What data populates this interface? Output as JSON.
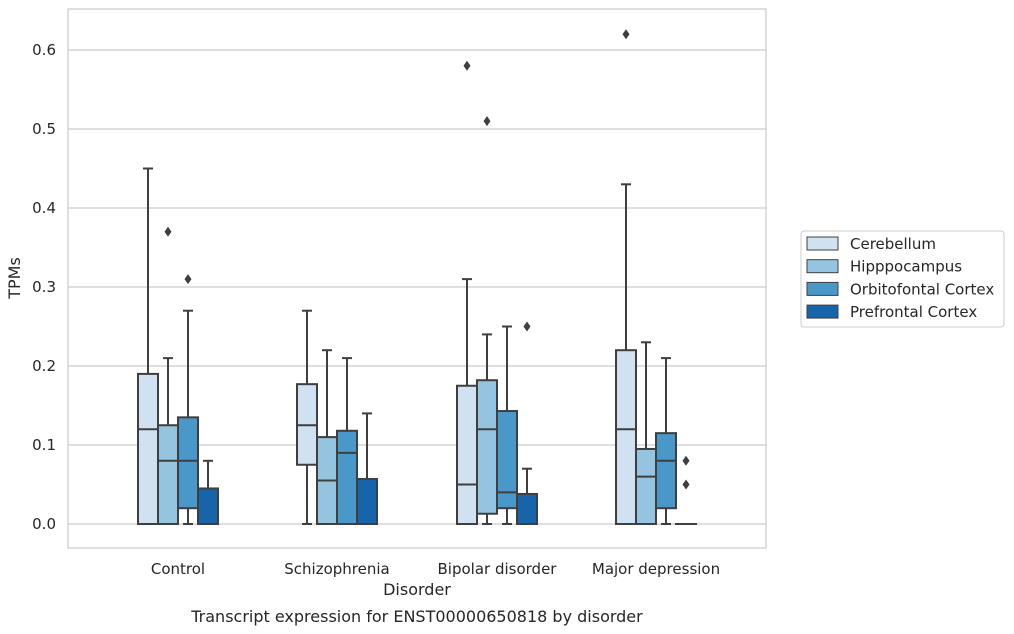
{
  "chart_data": {
    "type": "box",
    "caption": "Transcript expression for ENST00000650818 by disorder",
    "xlabel": "Disorder",
    "ylabel": "TPMs",
    "ylim": [
      -0.03,
      0.65
    ],
    "yticks": [
      0.0,
      0.1,
      0.2,
      0.3,
      0.4,
      0.5,
      0.6
    ],
    "ytick_labels": [
      "0.0",
      "0.1",
      "0.2",
      "0.3",
      "0.4",
      "0.5",
      "0.6"
    ],
    "grid": true,
    "legend_position": "right",
    "categories": [
      "Control",
      "Schizophrenia",
      "Bipolar disorder",
      "Major depression"
    ],
    "series": [
      {
        "name": "Cerebellum",
        "color": "#d0e1f2",
        "boxes": [
          {
            "whislo": 0.0,
            "q1": 0.0,
            "med": 0.12,
            "q3": 0.19,
            "whishi": 0.45,
            "fliers": []
          },
          {
            "whislo": 0.0,
            "q1": 0.075,
            "med": 0.125,
            "q3": 0.177,
            "whishi": 0.27,
            "fliers": []
          },
          {
            "whislo": 0.0,
            "q1": 0.0,
            "med": 0.05,
            "q3": 0.175,
            "whishi": 0.31,
            "fliers": [
              0.58
            ]
          },
          {
            "whislo": 0.0,
            "q1": 0.0,
            "med": 0.12,
            "q3": 0.22,
            "whishi": 0.43,
            "fliers": [
              0.62
            ]
          }
        ]
      },
      {
        "name": "Hipppocampus",
        "color": "#94c4df",
        "boxes": [
          {
            "whislo": 0.0,
            "q1": 0.0,
            "med": 0.08,
            "q3": 0.125,
            "whishi": 0.21,
            "fliers": [
              0.37
            ]
          },
          {
            "whislo": 0.0,
            "q1": 0.0,
            "med": 0.055,
            "q3": 0.11,
            "whishi": 0.22,
            "fliers": []
          },
          {
            "whislo": 0.0,
            "q1": 0.013,
            "med": 0.12,
            "q3": 0.182,
            "whishi": 0.24,
            "fliers": [
              0.51
            ]
          },
          {
            "whislo": 0.0,
            "q1": 0.0,
            "med": 0.06,
            "q3": 0.095,
            "whishi": 0.23,
            "fliers": []
          }
        ]
      },
      {
        "name": "Orbitofontal Cortex",
        "color": "#4a98c9",
        "boxes": [
          {
            "whislo": 0.0,
            "q1": 0.02,
            "med": 0.08,
            "q3": 0.135,
            "whishi": 0.27,
            "fliers": [
              0.31
            ]
          },
          {
            "whislo": 0.0,
            "q1": 0.0,
            "med": 0.09,
            "q3": 0.118,
            "whishi": 0.21,
            "fliers": []
          },
          {
            "whislo": 0.0,
            "q1": 0.02,
            "med": 0.04,
            "q3": 0.143,
            "whishi": 0.25,
            "fliers": []
          },
          {
            "whislo": 0.0,
            "q1": 0.02,
            "med": 0.08,
            "q3": 0.115,
            "whishi": 0.21,
            "fliers": []
          }
        ]
      },
      {
        "name": "Prefrontal Cortex",
        "color": "#1764ab",
        "boxes": [
          {
            "whislo": 0.0,
            "q1": 0.0,
            "med": 0.0,
            "q3": 0.045,
            "whishi": 0.08,
            "fliers": []
          },
          {
            "whislo": 0.0,
            "q1": 0.0,
            "med": 0.0,
            "q3": 0.057,
            "whishi": 0.14,
            "fliers": []
          },
          {
            "whislo": 0.0,
            "q1": 0.0,
            "med": 0.0,
            "q3": 0.038,
            "whishi": 0.07,
            "fliers": [
              0.25
            ]
          },
          {
            "whislo": 0.0,
            "q1": 0.0,
            "med": 0.0,
            "q3": 0.0,
            "whishi": 0.0,
            "fliers": [
              0.08,
              0.05
            ]
          }
        ]
      }
    ]
  }
}
